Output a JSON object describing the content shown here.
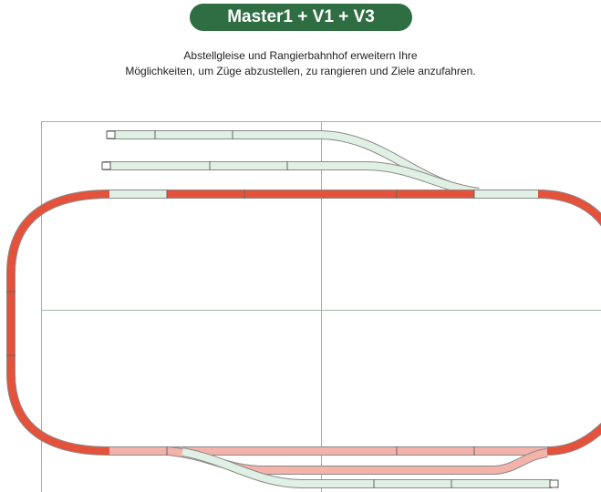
{
  "header": {
    "title": "Master1 + V1 + V3"
  },
  "description": {
    "lines": [
      "Abstellgleise und Rangierbahnhof erweitern Ihre",
      "Möglichkeiten, um Züge abzustellen, zu rangieren und Ziele anzufahren."
    ]
  }
}
